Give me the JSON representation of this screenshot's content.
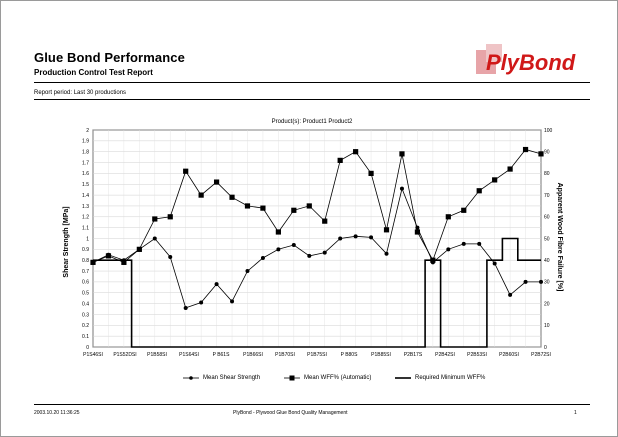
{
  "report": {
    "title": "Glue Bond Performance",
    "subtitle": "Production Control Test Report",
    "period": "Report period:  Last 30 productions"
  },
  "logo": {
    "text": "PlyBond",
    "color": "#d01818"
  },
  "footer": {
    "timestamp": "2003.10.20 11:36:25",
    "app_name": "PlyBond - Plywood Glue Bond Quality Management",
    "page_number": "1"
  },
  "chart_data": {
    "type": "line",
    "title": "Product(s): Product1 Product2",
    "xlabel": "",
    "ylabel": "Shear Strength [MPa]",
    "ylabel_right": "Apparent Wood Fibre Failure [%]",
    "ylim": [
      0,
      2.0
    ],
    "ylim_right": [
      0,
      100
    ],
    "y_ticks": [
      "0",
      "0.1",
      "0.2",
      "0.3",
      "0.4",
      "0.5",
      "0.6",
      "0.7",
      "0.8",
      "0.9",
      "1",
      "1.1",
      "1.2",
      "1.3",
      "1.4",
      "1.5",
      "1.6",
      "1.7",
      "1.8",
      "1.9",
      "2"
    ],
    "y_ticks_right": [
      "0",
      "10",
      "20",
      "30",
      "40",
      "50",
      "60",
      "70",
      "80",
      "90",
      "100"
    ],
    "x_tick_labels": [
      "P1S46SI",
      "P1S52DSI",
      "P1B58SI",
      "P1S64SI",
      "P B61S",
      "P1B66SI",
      "P1B70SI",
      "P1B75SI",
      "P B80S",
      "P1B85SI",
      "P2B17S",
      "P2B42SI",
      "P2B53SI",
      "P2B60SI",
      "P2B72SI"
    ],
    "grid": true,
    "legend_position": "bottom",
    "series": [
      {
        "name": "Mean Shear Strength",
        "axis": "left",
        "color": "#000000",
        "marker": "circle",
        "values": [
          0.78,
          0.85,
          0.8,
          0.9,
          1.0,
          0.83,
          0.36,
          0.41,
          0.58,
          0.42,
          0.7,
          0.82,
          0.9,
          0.94,
          0.84,
          0.87,
          1.0,
          1.02,
          1.01,
          0.86,
          1.46,
          1.1,
          0.78,
          0.9,
          0.95,
          0.95,
          0.77,
          0.48,
          0.6,
          0.6
        ]
      },
      {
        "name": "Mean WFF% (Automatic)",
        "axis": "right",
        "color": "#000000",
        "marker": "square",
        "values": [
          39,
          42,
          39,
          45,
          59,
          60,
          81,
          70,
          76,
          69,
          65,
          64,
          53,
          63,
          65,
          58,
          86,
          90,
          80,
          54,
          89,
          53,
          40,
          60,
          63,
          72,
          77,
          82,
          91,
          89
        ]
      },
      {
        "name": "Required Minimum WFF%",
        "axis": "right",
        "color": "#000000",
        "marker": "none",
        "step": true,
        "values": [
          40,
          40,
          40,
          0,
          0,
          0,
          0,
          0,
          0,
          0,
          0,
          0,
          0,
          0,
          0,
          0,
          0,
          0,
          0,
          0,
          0,
          0,
          40,
          0,
          0,
          0,
          40,
          50,
          40,
          40
        ]
      }
    ]
  }
}
